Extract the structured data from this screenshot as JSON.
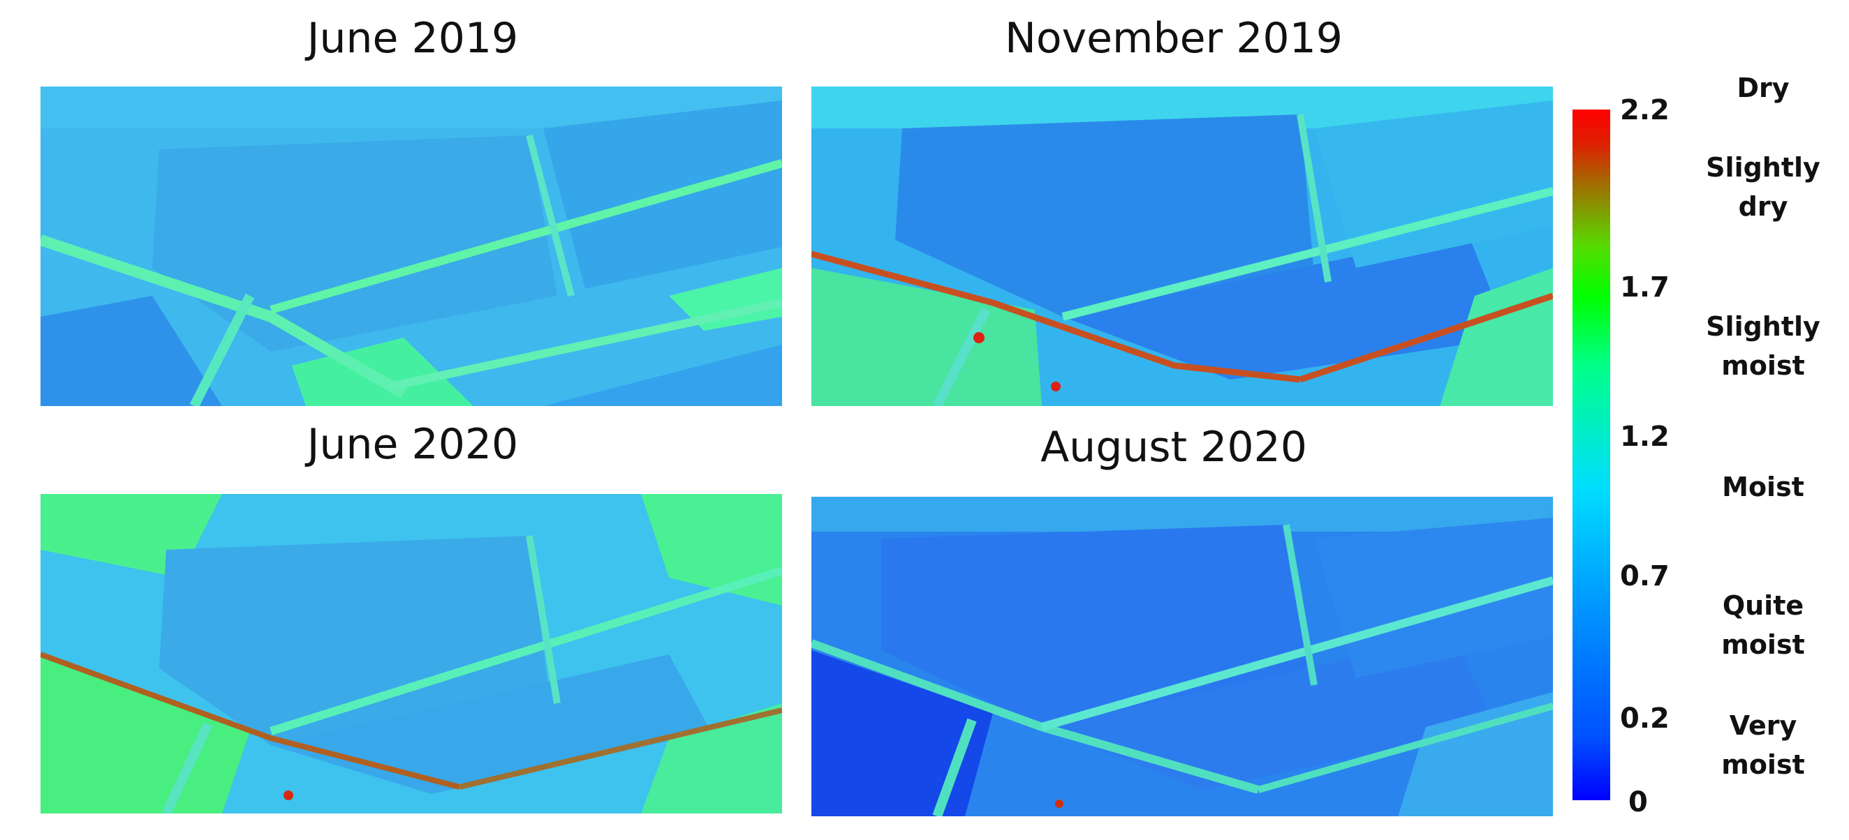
{
  "panels": [
    {
      "title": "June 2019",
      "base": "#3fb8ee"
    },
    {
      "title": "November 2019",
      "base": "#2ea4f0"
    },
    {
      "title": "June 2020",
      "base": "#3fb8ee"
    },
    {
      "title": "August 2020",
      "base": "#2a78f0"
    }
  ],
  "colorbar": {
    "ticks": [
      "2.2",
      "1.7",
      "1.2",
      "0.7",
      "0.2",
      "0"
    ],
    "classes": [
      {
        "line1": "Dry",
        "line2": ""
      },
      {
        "line1": "Slightly",
        "line2": "dry"
      },
      {
        "line1": "Slightly",
        "line2": "moist"
      },
      {
        "line1": "Moist",
        "line2": ""
      },
      {
        "line1": "Quite",
        "line2": "moist"
      },
      {
        "line1": "Very",
        "line2": "moist"
      }
    ],
    "colors": {
      "high": "#ff0000",
      "mid_high": "#00ff00",
      "mid": "#00ddff",
      "low": "#0000ff"
    }
  }
}
